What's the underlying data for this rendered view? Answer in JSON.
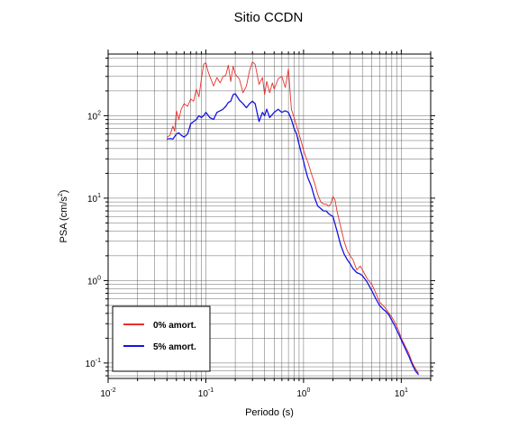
{
  "chart_data": {
    "type": "line",
    "title": "Sitio CCDN",
    "xlabel": "Periodo (s)",
    "ylabel_parts": {
      "main": "PSA (cm/s",
      "sup": "2",
      "close": ")"
    },
    "xscale": "log",
    "yscale": "log",
    "xlim": [
      0.01,
      20
    ],
    "ylim": [
      0.065,
      560
    ],
    "grid": true,
    "legend_position": "bottom-left",
    "xticks": [
      {
        "value": 0.01,
        "base": "10",
        "exp": "-2"
      },
      {
        "value": 0.1,
        "base": "10",
        "exp": "-1"
      },
      {
        "value": 1,
        "base": "10",
        "exp": "0"
      },
      {
        "value": 10,
        "base": "10",
        "exp": "1"
      }
    ],
    "yticks": [
      {
        "value": 0.1,
        "base": "10",
        "exp": "-1"
      },
      {
        "value": 1,
        "base": "10",
        "exp": "0"
      },
      {
        "value": 10,
        "base": "10",
        "exp": "1"
      },
      {
        "value": 100,
        "base": "10",
        "exp": "2"
      }
    ],
    "series": [
      {
        "name": "0% amort.",
        "color": "#e8302a",
        "x": [
          0.04,
          0.043,
          0.046,
          0.048,
          0.05,
          0.053,
          0.056,
          0.06,
          0.065,
          0.07,
          0.075,
          0.08,
          0.085,
          0.09,
          0.095,
          0.1,
          0.105,
          0.11,
          0.12,
          0.13,
          0.14,
          0.15,
          0.16,
          0.17,
          0.18,
          0.19,
          0.2,
          0.22,
          0.24,
          0.26,
          0.28,
          0.3,
          0.32,
          0.35,
          0.38,
          0.4,
          0.42,
          0.45,
          0.48,
          0.5,
          0.55,
          0.6,
          0.65,
          0.7,
          0.75,
          0.8,
          0.85,
          0.9,
          0.95,
          1.0,
          1.05,
          1.1,
          1.2,
          1.3,
          1.4,
          1.5,
          1.6,
          1.7,
          1.8,
          1.9,
          2.0,
          2.1,
          2.2,
          2.4,
          2.6,
          2.8,
          3.0,
          3.2,
          3.5,
          3.8,
          4.0,
          4.5,
          5.0,
          5.5,
          6.0,
          6.5,
          7.0,
          7.5,
          8.0,
          8.5,
          9.0,
          9.5,
          10.0,
          11.0,
          12.0,
          13.0,
          14.0,
          15.0
        ],
        "y": [
          55,
          58,
          75,
          65,
          115,
          90,
          120,
          140,
          130,
          160,
          150,
          210,
          170,
          280,
          420,
          440,
          350,
          300,
          230,
          290,
          250,
          300,
          310,
          410,
          260,
          400,
          320,
          280,
          190,
          230,
          350,
          450,
          420,
          240,
          290,
          180,
          260,
          190,
          250,
          210,
          280,
          300,
          220,
          370,
          120,
          95,
          75,
          60,
          48,
          38,
          32,
          28,
          20,
          15,
          11,
          9,
          8.5,
          8.5,
          8.0,
          8.5,
          10.5,
          9.5,
          7.0,
          4.5,
          3.0,
          2.3,
          2.0,
          1.8,
          1.35,
          1.5,
          1.35,
          1.05,
          0.9,
          0.7,
          0.55,
          0.5,
          0.45,
          0.4,
          0.36,
          0.32,
          0.28,
          0.24,
          0.2,
          0.16,
          0.13,
          0.1,
          0.085,
          0.075
        ]
      },
      {
        "name": "5% amort.",
        "color": "#1414e0",
        "x": [
          0.04,
          0.043,
          0.046,
          0.05,
          0.053,
          0.056,
          0.06,
          0.065,
          0.07,
          0.075,
          0.08,
          0.085,
          0.09,
          0.095,
          0.1,
          0.11,
          0.12,
          0.13,
          0.14,
          0.15,
          0.16,
          0.17,
          0.18,
          0.19,
          0.2,
          0.22,
          0.24,
          0.26,
          0.28,
          0.3,
          0.32,
          0.35,
          0.38,
          0.4,
          0.42,
          0.45,
          0.5,
          0.55,
          0.6,
          0.65,
          0.7,
          0.75,
          0.8,
          0.85,
          0.9,
          0.95,
          1.0,
          1.05,
          1.1,
          1.2,
          1.3,
          1.4,
          1.5,
          1.6,
          1.7,
          1.8,
          1.9,
          2.0,
          2.2,
          2.4,
          2.6,
          2.8,
          3.0,
          3.2,
          3.5,
          3.8,
          4.0,
          4.5,
          5.0,
          5.5,
          6.0,
          6.5,
          7.0,
          7.5,
          8.0,
          8.5,
          9.0,
          9.5,
          10.0,
          11.0,
          12.0,
          13.0,
          14.0,
          15.0
        ],
        "y": [
          52,
          53,
          52,
          60,
          62,
          58,
          55,
          60,
          80,
          85,
          90,
          100,
          95,
          100,
          110,
          95,
          90,
          110,
          115,
          120,
          130,
          145,
          150,
          180,
          185,
          155,
          140,
          125,
          140,
          150,
          140,
          85,
          110,
          100,
          120,
          95,
          110,
          120,
          110,
          115,
          110,
          90,
          70,
          60,
          45,
          35,
          28,
          22,
          18,
          14,
          10,
          8,
          7.5,
          7.0,
          7.0,
          6.5,
          6.2,
          6.0,
          4.0,
          2.7,
          2.1,
          1.8,
          1.6,
          1.4,
          1.25,
          1.2,
          1.15,
          0.95,
          0.75,
          0.6,
          0.5,
          0.45,
          0.42,
          0.38,
          0.33,
          0.29,
          0.25,
          0.22,
          0.19,
          0.15,
          0.12,
          0.095,
          0.08,
          0.072
        ]
      }
    ]
  }
}
